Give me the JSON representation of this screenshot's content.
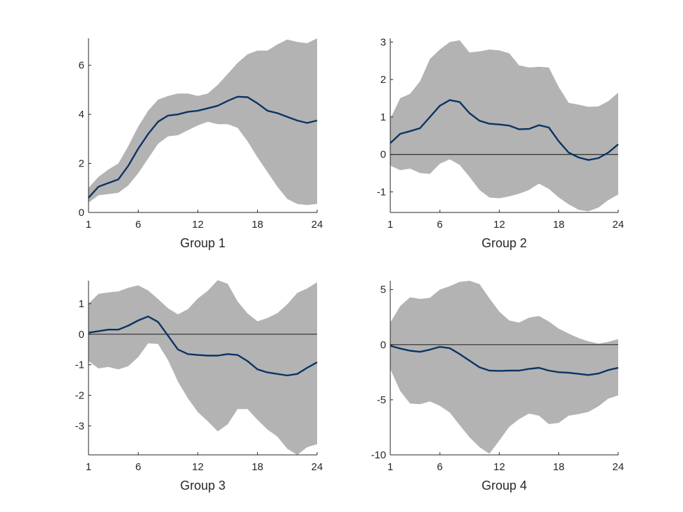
{
  "colors": {
    "band": "#b3b3b3",
    "median": "#0a3463",
    "zero_line": "#3a3a3a",
    "axis": "#262626"
  },
  "chart_data": [
    {
      "type": "line",
      "title": "",
      "xlabel": "Group 1",
      "ylabel": "",
      "xlim": [
        1,
        24
      ],
      "ylim": [
        0,
        7.1
      ],
      "xticks": [
        1,
        6,
        12,
        18,
        24
      ],
      "yticks": [
        0,
        2,
        4,
        6
      ],
      "zero_line": false,
      "x": [
        1,
        2,
        3,
        4,
        5,
        6,
        7,
        8,
        9,
        10,
        11,
        12,
        13,
        14,
        15,
        16,
        17,
        18,
        19,
        20,
        21,
        22,
        23,
        24
      ],
      "series": [
        {
          "role": "median",
          "values": [
            0.6,
            1.05,
            1.2,
            1.35,
            1.9,
            2.6,
            3.2,
            3.7,
            3.95,
            4.0,
            4.1,
            4.15,
            4.25,
            4.35,
            4.55,
            4.72,
            4.7,
            4.45,
            4.15,
            4.05,
            3.9,
            3.75,
            3.65,
            3.75
          ]
        },
        {
          "role": "upper",
          "values": [
            1.0,
            1.45,
            1.75,
            2.0,
            2.7,
            3.5,
            4.15,
            4.6,
            4.75,
            4.85,
            4.85,
            4.75,
            4.85,
            5.2,
            5.65,
            6.1,
            6.45,
            6.6,
            6.6,
            6.85,
            7.05,
            6.95,
            6.9,
            7.1
          ]
        },
        {
          "role": "lower",
          "values": [
            0.4,
            0.7,
            0.75,
            0.8,
            1.1,
            1.6,
            2.2,
            2.8,
            3.1,
            3.15,
            3.35,
            3.55,
            3.7,
            3.6,
            3.6,
            3.45,
            2.9,
            2.25,
            1.65,
            1.05,
            0.55,
            0.35,
            0.3,
            0.35
          ]
        }
      ]
    },
    {
      "type": "line",
      "title": "",
      "xlabel": "Group 2",
      "ylabel": "",
      "xlim": [
        1,
        24
      ],
      "ylim": [
        -1.55,
        3.1
      ],
      "xticks": [
        1,
        6,
        12,
        18,
        24
      ],
      "yticks": [
        -1,
        0,
        1,
        2,
        3
      ],
      "zero_line": true,
      "x": [
        1,
        2,
        3,
        4,
        5,
        6,
        7,
        8,
        9,
        10,
        11,
        12,
        13,
        14,
        15,
        16,
        17,
        18,
        19,
        20,
        21,
        22,
        23,
        24
      ],
      "series": [
        {
          "role": "median",
          "values": [
            0.3,
            0.55,
            0.62,
            0.7,
            1.0,
            1.3,
            1.45,
            1.4,
            1.1,
            0.9,
            0.82,
            0.8,
            0.77,
            0.67,
            0.68,
            0.78,
            0.72,
            0.35,
            0.05,
            -0.08,
            -0.15,
            -0.1,
            0.05,
            0.27
          ]
        },
        {
          "role": "upper",
          "values": [
            0.95,
            1.5,
            1.62,
            1.95,
            2.55,
            2.8,
            3.0,
            3.05,
            2.72,
            2.75,
            2.8,
            2.78,
            2.7,
            2.38,
            2.32,
            2.34,
            2.32,
            1.8,
            1.38,
            1.33,
            1.27,
            1.28,
            1.42,
            1.65
          ]
        },
        {
          "role": "lower",
          "values": [
            -0.3,
            -0.42,
            -0.38,
            -0.5,
            -0.52,
            -0.25,
            -0.13,
            -0.28,
            -0.6,
            -0.95,
            -1.15,
            -1.17,
            -1.12,
            -1.05,
            -0.95,
            -0.78,
            -0.92,
            -1.15,
            -1.33,
            -1.48,
            -1.52,
            -1.42,
            -1.22,
            -1.07
          ]
        }
      ]
    },
    {
      "type": "line",
      "title": "",
      "xlabel": "Group 3",
      "ylabel": "",
      "xlim": [
        1,
        24
      ],
      "ylim": [
        -3.95,
        1.75
      ],
      "xticks": [
        1,
        6,
        12,
        18,
        24
      ],
      "yticks": [
        -3,
        -2,
        -1,
        0,
        1
      ],
      "zero_line": true,
      "x": [
        1,
        2,
        3,
        4,
        5,
        6,
        7,
        8,
        9,
        10,
        11,
        12,
        13,
        14,
        15,
        16,
        17,
        18,
        19,
        20,
        21,
        22,
        23,
        24
      ],
      "series": [
        {
          "role": "median",
          "values": [
            0.05,
            0.1,
            0.15,
            0.15,
            0.28,
            0.45,
            0.58,
            0.4,
            -0.05,
            -0.5,
            -0.65,
            -0.68,
            -0.7,
            -0.7,
            -0.65,
            -0.68,
            -0.88,
            -1.15,
            -1.25,
            -1.3,
            -1.35,
            -1.3,
            -1.1,
            -0.92
          ]
        },
        {
          "role": "upper",
          "values": [
            1.0,
            1.32,
            1.37,
            1.4,
            1.52,
            1.6,
            1.43,
            1.15,
            0.85,
            0.65,
            0.82,
            1.17,
            1.42,
            1.77,
            1.65,
            1.07,
            0.68,
            0.42,
            0.53,
            0.69,
            0.98,
            1.35,
            1.5,
            1.7
          ]
        },
        {
          "role": "lower",
          "values": [
            -0.88,
            -1.12,
            -1.07,
            -1.15,
            -1.05,
            -0.75,
            -0.3,
            -0.32,
            -0.85,
            -1.55,
            -2.1,
            -2.55,
            -2.85,
            -3.18,
            -2.95,
            -2.45,
            -2.45,
            -2.8,
            -3.12,
            -3.35,
            -3.75,
            -3.95,
            -3.7,
            -3.6
          ]
        }
      ]
    },
    {
      "type": "line",
      "title": "",
      "xlabel": "Group 4",
      "ylabel": "",
      "xlim": [
        1,
        24
      ],
      "ylim": [
        -10,
        5.8
      ],
      "xticks": [
        1,
        6,
        12,
        18,
        24
      ],
      "yticks": [
        -10,
        -5,
        0,
        5
      ],
      "zero_line": true,
      "x": [
        1,
        2,
        3,
        4,
        5,
        6,
        7,
        8,
        9,
        10,
        11,
        12,
        13,
        14,
        15,
        16,
        17,
        18,
        19,
        20,
        21,
        22,
        23,
        24
      ],
      "series": [
        {
          "role": "median",
          "values": [
            -0.1,
            -0.35,
            -0.55,
            -0.65,
            -0.45,
            -0.2,
            -0.32,
            -0.85,
            -1.45,
            -2.05,
            -2.35,
            -2.38,
            -2.35,
            -2.35,
            -2.2,
            -2.1,
            -2.35,
            -2.5,
            -2.55,
            -2.65,
            -2.75,
            -2.62,
            -2.3,
            -2.1
          ]
        },
        {
          "role": "upper",
          "values": [
            2.0,
            3.5,
            4.3,
            4.15,
            4.25,
            5.0,
            5.3,
            5.7,
            5.8,
            5.5,
            4.2,
            3.0,
            2.2,
            2.0,
            2.45,
            2.6,
            2.1,
            1.45,
            1.0,
            0.6,
            0.3,
            0.1,
            0.25,
            0.5
          ]
        },
        {
          "role": "lower",
          "values": [
            -2.2,
            -4.2,
            -5.35,
            -5.4,
            -5.15,
            -5.55,
            -6.15,
            -7.3,
            -8.4,
            -9.3,
            -9.9,
            -8.7,
            -7.45,
            -6.75,
            -6.25,
            -6.45,
            -7.2,
            -7.1,
            -6.45,
            -6.3,
            -6.1,
            -5.6,
            -4.9,
            -4.6
          ]
        }
      ]
    }
  ]
}
